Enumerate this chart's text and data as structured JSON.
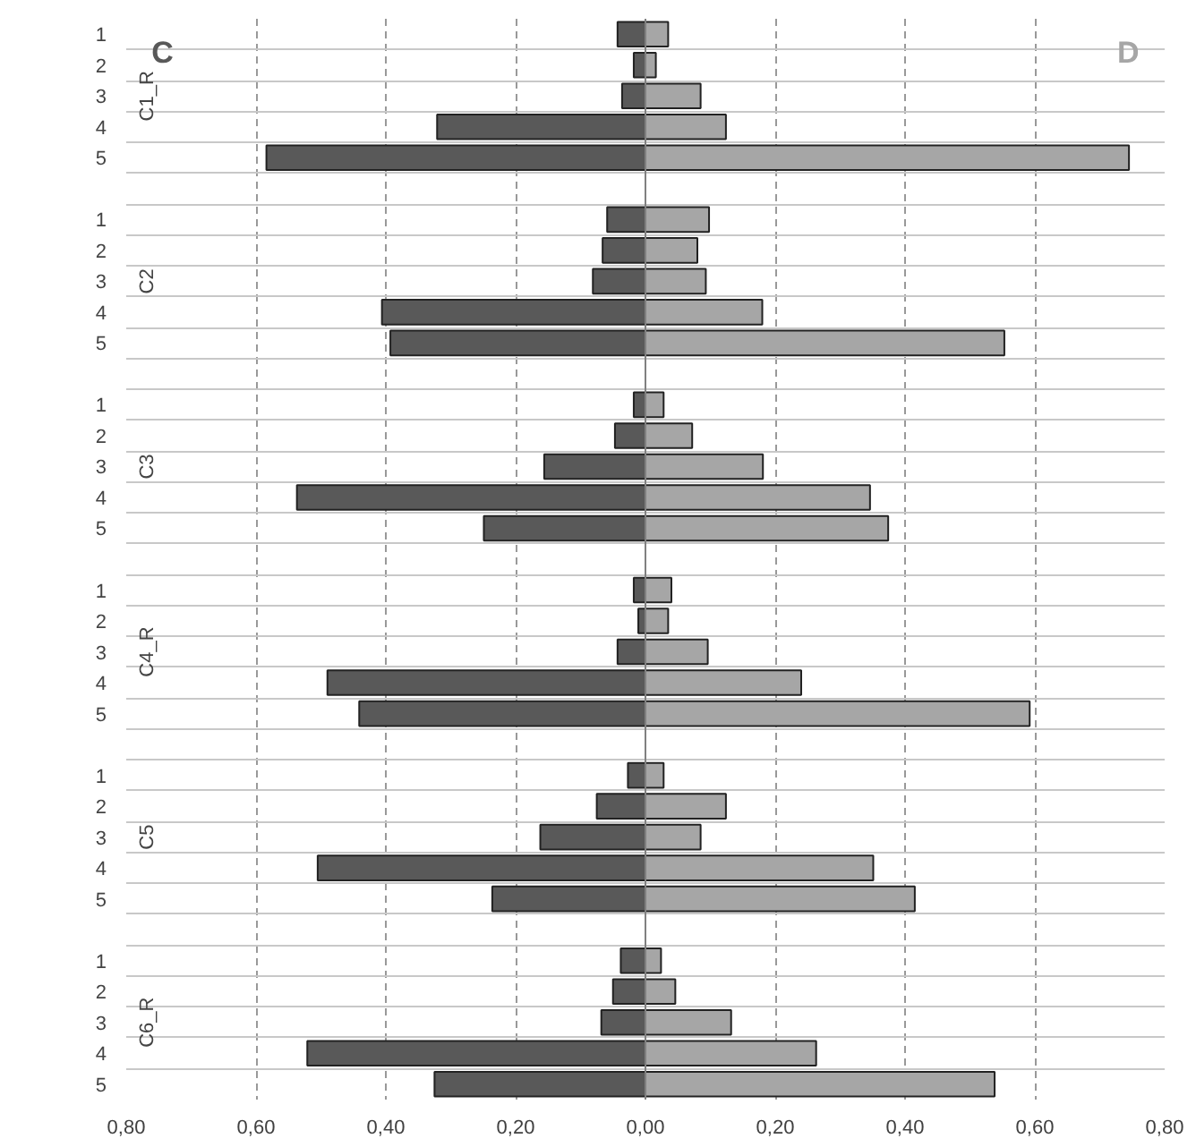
{
  "chart_data": {
    "type": "bar",
    "orientation": "horizontal",
    "grid": true,
    "stacked": true,
    "categories": [
      "1",
      "2",
      "3",
      "4",
      "5",
      null,
      "1",
      "2",
      "3",
      "4",
      "5",
      null,
      "1",
      "2",
      "3",
      "4",
      "5",
      null,
      "1",
      "2",
      "3",
      "4",
      "5",
      null,
      "1",
      "2",
      "3",
      "4",
      "5",
      null,
      "1",
      "2",
      "3",
      "4",
      "5"
    ],
    "series": [
      {
        "name": "C",
        "color": "#595959",
        "values": [
          -0.043,
          -0.018,
          -0.036,
          -0.321,
          -0.584,
          null,
          -0.059,
          -0.066,
          -0.081,
          -0.406,
          -0.393,
          null,
          -0.018,
          -0.047,
          -0.156,
          -0.537,
          -0.249,
          null,
          -0.018,
          -0.011,
          -0.043,
          -0.49,
          -0.441,
          null,
          -0.027,
          -0.075,
          -0.162,
          -0.505,
          -0.236,
          null,
          -0.038,
          -0.05,
          -0.068,
          -0.521,
          -0.325
        ]
      },
      {
        "name": "D",
        "color": "#a6a6a6",
        "values": [
          0.035,
          0.016,
          0.085,
          0.124,
          0.745,
          null,
          0.098,
          0.08,
          0.093,
          0.18,
          0.553,
          null,
          0.028,
          0.072,
          0.181,
          0.346,
          0.374,
          null,
          0.04,
          0.035,
          0.096,
          0.24,
          0.592,
          null,
          0.028,
          0.124,
          0.085,
          0.351,
          0.415,
          null,
          0.024,
          0.046,
          0.132,
          0.263,
          0.538
        ]
      }
    ],
    "annotations": [
      "C1_R",
      "C2",
      "C3",
      "C4_R",
      "C5",
      "C6_R"
    ],
    "xlim": [
      -0.8,
      0.8
    ],
    "xticks": [
      {
        "value": -0.8,
        "label": "0,80"
      },
      {
        "value": -0.6,
        "label": "0,60"
      },
      {
        "value": -0.4,
        "label": "0,40"
      },
      {
        "value": -0.2,
        "label": "0,20"
      },
      {
        "value": 0,
        "label": "0,00"
      },
      {
        "value": 0.2,
        "label": "0,20"
      },
      {
        "value": 0.4,
        "label": "0,40"
      },
      {
        "value": 0.6,
        "label": "0,60"
      },
      {
        "value": 0.8,
        "label": "0,80"
      }
    ]
  }
}
